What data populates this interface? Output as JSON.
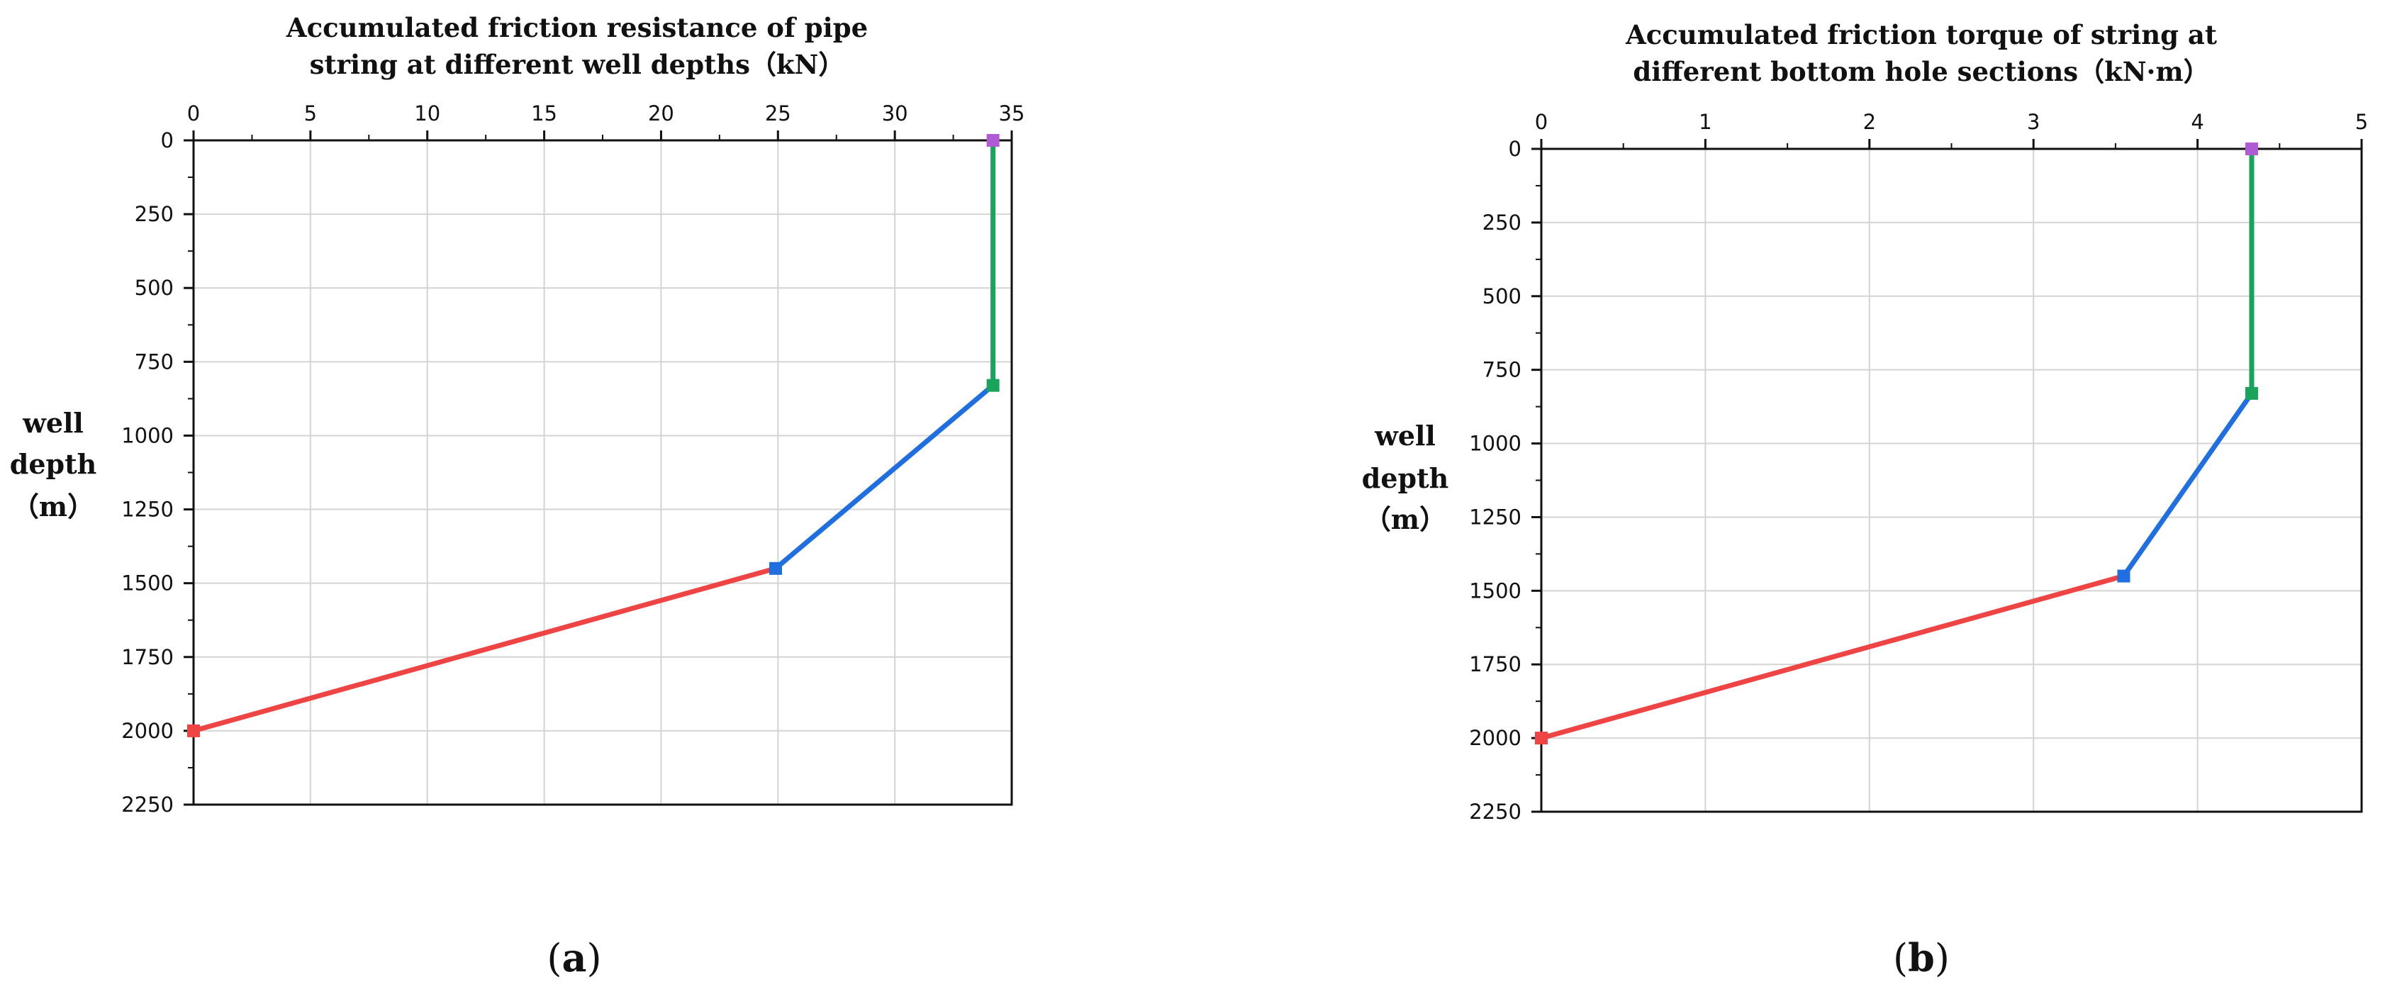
{
  "chart_data": [
    {
      "type": "line",
      "panel_label": "a",
      "title": [
        "Accumulated friction resistance of pipe",
        "string at different well depths（kN）"
      ],
      "ylabel": [
        "well",
        "depth",
        "（m）"
      ],
      "xlim": [
        0,
        35
      ],
      "ylim": [
        0,
        2250
      ],
      "x_ticks": [
        0,
        5,
        10,
        15,
        20,
        25,
        30,
        35
      ],
      "y_ticks": [
        0,
        250,
        500,
        750,
        1000,
        1250,
        1500,
        1750,
        2000,
        2250
      ],
      "x_axis_position": "top",
      "y_inverted": true,
      "grid": true,
      "series": [
        {
          "color": "#ef4444",
          "points": [
            [
              0,
              2000
            ],
            [
              24.9,
              1450
            ]
          ]
        },
        {
          "color": "#1f6fe0",
          "points": [
            [
              24.9,
              1450
            ],
            [
              34.2,
              830
            ]
          ]
        },
        {
          "color": "#1aa35a",
          "points": [
            [
              34.2,
              830
            ],
            [
              34.2,
              0
            ]
          ]
        }
      ],
      "markers": [
        {
          "color": "#ef4444",
          "point": [
            0,
            2000
          ]
        },
        {
          "color": "#1f6fe0",
          "point": [
            24.9,
            1450
          ]
        },
        {
          "color": "#1aa35a",
          "point": [
            34.2,
            830
          ]
        },
        {
          "color": "#b05ad6",
          "point": [
            34.2,
            0
          ]
        }
      ]
    },
    {
      "type": "line",
      "panel_label": "b",
      "title": [
        "Accumulated friction torque of string at",
        "different bottom hole sections（kN·m）"
      ],
      "ylabel": [
        "well",
        "depth",
        "（m）"
      ],
      "xlim": [
        0,
        5
      ],
      "ylim": [
        0,
        2250
      ],
      "x_ticks": [
        0,
        1,
        2,
        3,
        4,
        5
      ],
      "y_ticks": [
        0,
        250,
        500,
        750,
        1000,
        1250,
        1500,
        1750,
        2000,
        2250
      ],
      "x_axis_position": "top",
      "y_inverted": true,
      "grid": true,
      "series": [
        {
          "color": "#ef4444",
          "points": [
            [
              0,
              2000
            ],
            [
              3.55,
              1450
            ]
          ]
        },
        {
          "color": "#1f6fe0",
          "points": [
            [
              3.55,
              1450
            ],
            [
              4.33,
              830
            ]
          ]
        },
        {
          "color": "#1aa35a",
          "points": [
            [
              4.33,
              830
            ],
            [
              4.33,
              0
            ]
          ]
        }
      ],
      "markers": [
        {
          "color": "#ef4444",
          "point": [
            0,
            2000
          ]
        },
        {
          "color": "#1f6fe0",
          "point": [
            3.55,
            1450
          ]
        },
        {
          "color": "#1aa35a",
          "point": [
            4.33,
            830
          ]
        },
        {
          "color": "#b05ad6",
          "point": [
            4.33,
            0
          ]
        }
      ]
    }
  ]
}
